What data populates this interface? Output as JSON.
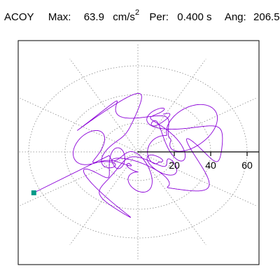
{
  "header": {
    "channel": "ACOY",
    "max_label": "Max:",
    "max_value": "63.9",
    "max_unit": "cm/s",
    "max_exp": "2",
    "per_label": "Per:",
    "per_value": "0.400 s",
    "ang_label": "Ang:",
    "ang_value": "206.5"
  },
  "chart_data": {
    "type": "scatter",
    "subtype": "polar-orbit",
    "radial_ticks": [
      20,
      40,
      60
    ],
    "radial_tick_labels": [
      "20",
      "40",
      "60"
    ],
    "radial_max": 68,
    "grid": "dotted circles and radial lines every 30 degrees",
    "max_amplitude": 63.9,
    "max_angle_deg": 206.5,
    "colors": {
      "trace": "#8B00D8",
      "marker": "#009A88",
      "grid": "#888888",
      "axis": "#000000"
    }
  }
}
